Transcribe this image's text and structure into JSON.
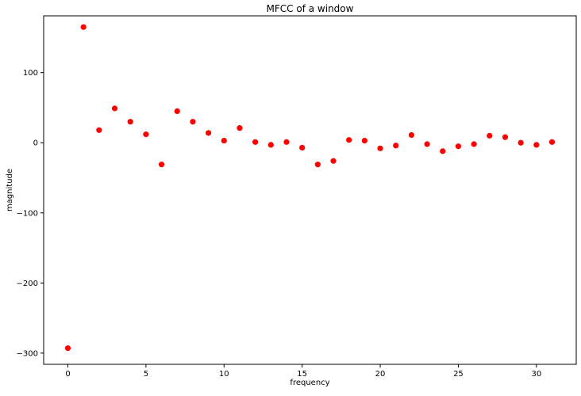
{
  "chart_data": {
    "type": "scatter",
    "title": "MFCC of a window",
    "xlabel": "frequency",
    "ylabel": "magnitude",
    "xlim": [
      -1.55,
      32.55
    ],
    "ylim": [
      -316,
      181
    ],
    "xticks": [
      0,
      5,
      10,
      15,
      20,
      25,
      30
    ],
    "yticks": [
      -300,
      -200,
      -100,
      0,
      100
    ],
    "ytick_labels": [
      "−300",
      "−200",
      "−100",
      "0",
      "100"
    ],
    "grid": false,
    "marker_color": "#ff0000",
    "series": [
      {
        "x": [
          0,
          1,
          2,
          3,
          4,
          5,
          6,
          7,
          8,
          9,
          10,
          11,
          12,
          13,
          14,
          15,
          16,
          17,
          18,
          19,
          20,
          21,
          22,
          23,
          24,
          25,
          26,
          27,
          28,
          29,
          30,
          31
        ],
        "y": [
          -293,
          165,
          18,
          49,
          30,
          12,
          -31,
          45,
          30,
          14,
          3,
          21,
          1,
          -3,
          1,
          -7,
          -31,
          -26,
          4,
          3,
          -8,
          -4,
          11,
          -2,
          -12,
          -5,
          -2,
          10,
          8,
          0,
          -3,
          1
        ]
      }
    ]
  }
}
